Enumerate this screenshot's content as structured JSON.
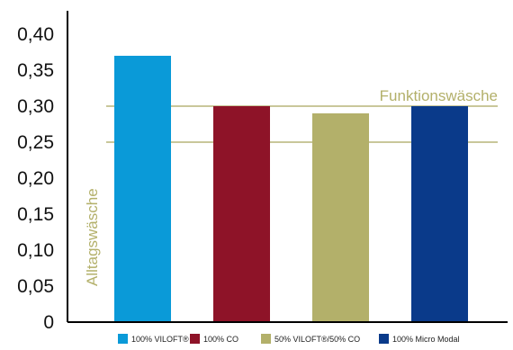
{
  "chart_data": {
    "type": "bar",
    "title": "",
    "xlabel": "",
    "ylabel": "",
    "categories": [
      "100% VILOFT®",
      "100% CO",
      "50% VILOFT®/50% CO",
      "100% Micro Modal"
    ],
    "values": [
      0.37,
      0.3,
      0.29,
      0.3
    ],
    "colors": [
      "#0a9ad8",
      "#8e1328",
      "#b3b06a",
      "#0a3a8a"
    ],
    "ylim": [
      0,
      0.4
    ],
    "yticks": [
      {
        "value": 0,
        "label": "0"
      },
      {
        "value": 0.05,
        "label": "0,05"
      },
      {
        "value": 0.1,
        "label": "0,10"
      },
      {
        "value": 0.15,
        "label": "0,15"
      },
      {
        "value": 0.2,
        "label": "0,20"
      },
      {
        "value": 0.25,
        "label": "0,25"
      },
      {
        "value": 0.3,
        "label": "0,30"
      },
      {
        "value": 0.35,
        "label": "0,35"
      },
      {
        "value": 0.4,
        "label": "0,40"
      }
    ],
    "reference_lines": [
      {
        "value": 0.25,
        "color": "#c9c79a"
      },
      {
        "value": 0.3,
        "color": "#c9c79a"
      }
    ],
    "annotations": {
      "upper": "Funktionswäsche",
      "lower": "Alltagswäsche",
      "color": "#b3b06a"
    },
    "legend": {
      "placement": "bottom",
      "entries": [
        "100% VILOFT®",
        "100% CO",
        "50% VILOFT®/50% CO",
        "100% Micro Modal"
      ]
    },
    "grid": false
  }
}
